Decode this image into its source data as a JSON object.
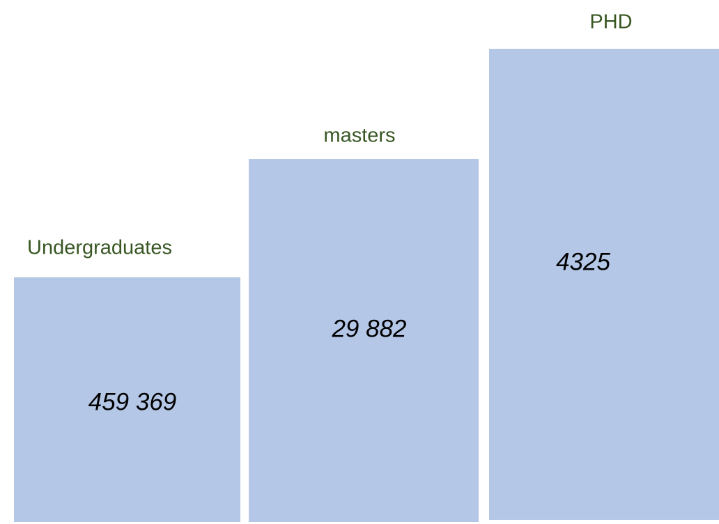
{
  "items": [
    {
      "label": "Undergraduates",
      "number": "459 369"
    },
    {
      "label": "masters",
      "number": "29 882"
    },
    {
      "label": "PHD",
      "number": "4325"
    }
  ]
}
